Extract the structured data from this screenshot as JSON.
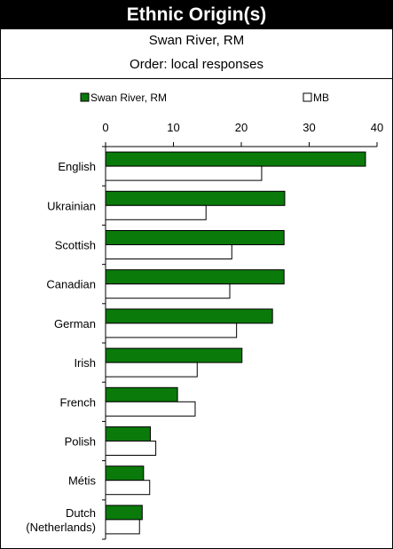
{
  "header": {
    "title": "Ethnic Origin(s)",
    "subtitle": "Swan River, RM",
    "order_note": "Order: local responses"
  },
  "chart_data": {
    "type": "bar",
    "orientation": "horizontal",
    "title": "Ethnic Origin(s)",
    "xlabel": "",
    "ylabel": "",
    "xlim": [
      0,
      40
    ],
    "x_ticks": [
      0,
      10,
      20,
      30,
      40
    ],
    "grid": false,
    "legend_placement": "top",
    "categories": [
      "English",
      "Ukrainian",
      "Scottish",
      "Canadian",
      "German",
      "Irish",
      "French",
      "Polish",
      "Métis",
      "Dutch (Netherlands)"
    ],
    "category_lines": [
      [
        "English"
      ],
      [
        "Ukrainian"
      ],
      [
        "Scottish"
      ],
      [
        "Canadian"
      ],
      [
        "German"
      ],
      [
        "Irish"
      ],
      [
        "French"
      ],
      [
        "Polish"
      ],
      [
        "Métis"
      ],
      [
        "Dutch",
        "(Netherlands)"
      ]
    ],
    "series": [
      {
        "name": "Swan River, RM",
        "color": "#0a7a0a",
        "values": [
          38.3,
          26.4,
          26.3,
          26.3,
          24.6,
          20.1,
          10.6,
          6.6,
          5.6,
          5.4
        ]
      },
      {
        "name": "MB",
        "color": "#ffffff",
        "values": [
          23.0,
          14.8,
          18.6,
          18.3,
          19.3,
          13.5,
          13.2,
          7.4,
          6.5,
          5.0
        ]
      }
    ]
  }
}
